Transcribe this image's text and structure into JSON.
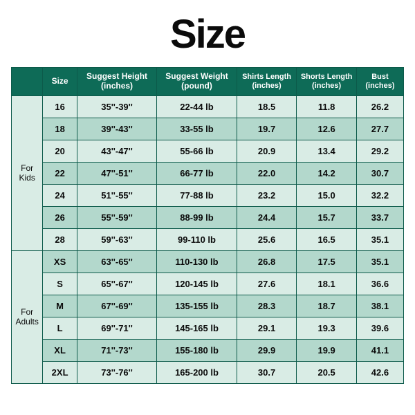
{
  "title": "Size",
  "title_fontsize": 58,
  "colors": {
    "page_bg": "#ffffff",
    "border": "#0c5a4a",
    "header_bg": "#0e6b57",
    "header_text": "#ffffff",
    "group_bg": "#d9ece5",
    "row_odd": "#d9ece5",
    "row_even": "#b3d8cc",
    "cell_text": "#0b0b0b"
  },
  "fontsize": {
    "header": 12,
    "header_small": 11,
    "cell": 13,
    "group": 12
  },
  "columns": [
    {
      "key": "size",
      "label": "Size",
      "unit": ""
    },
    {
      "key": "height",
      "label": "Suggest Height",
      "unit": "(inches)"
    },
    {
      "key": "weight",
      "label": "Suggest Weight",
      "unit": "(pound)"
    },
    {
      "key": "shirts",
      "label": "Shirts Length",
      "unit": "(inches)"
    },
    {
      "key": "shorts",
      "label": "Shorts Length",
      "unit": "(inches)"
    },
    {
      "key": "bust",
      "label": "Bust",
      "unit": "(inches)"
    }
  ],
  "groups": [
    {
      "label": "For\nKids",
      "rows": [
        {
          "size": "16",
          "height": "35''-39''",
          "weight": "22-44 lb",
          "shirts": "18.5",
          "shorts": "11.8",
          "bust": "26.2"
        },
        {
          "size": "18",
          "height": "39''-43''",
          "weight": "33-55 lb",
          "shirts": "19.7",
          "shorts": "12.6",
          "bust": "27.7"
        },
        {
          "size": "20",
          "height": "43''-47''",
          "weight": "55-66 lb",
          "shirts": "20.9",
          "shorts": "13.4",
          "bust": "29.2"
        },
        {
          "size": "22",
          "height": "47''-51''",
          "weight": "66-77 lb",
          "shirts": "22.0",
          "shorts": "14.2",
          "bust": "30.7"
        },
        {
          "size": "24",
          "height": "51''-55''",
          "weight": "77-88 lb",
          "shirts": "23.2",
          "shorts": "15.0",
          "bust": "32.2"
        },
        {
          "size": "26",
          "height": "55''-59''",
          "weight": "88-99 lb",
          "shirts": "24.4",
          "shorts": "15.7",
          "bust": "33.7"
        },
        {
          "size": "28",
          "height": "59''-63''",
          "weight": "99-110 lb",
          "shirts": "25.6",
          "shorts": "16.5",
          "bust": "35.1"
        }
      ]
    },
    {
      "label": "For\nAdults",
      "rows": [
        {
          "size": "XS",
          "height": "63''-65''",
          "weight": "110-130 lb",
          "shirts": "26.8",
          "shorts": "17.5",
          "bust": "35.1"
        },
        {
          "size": "S",
          "height": "65''-67''",
          "weight": "120-145 lb",
          "shirts": "27.6",
          "shorts": "18.1",
          "bust": "36.6"
        },
        {
          "size": "M",
          "height": "67''-69''",
          "weight": "135-155 lb",
          "shirts": "28.3",
          "shorts": "18.7",
          "bust": "38.1"
        },
        {
          "size": "L",
          "height": "69''-71''",
          "weight": "145-165 lb",
          "shirts": "29.1",
          "shorts": "19.3",
          "bust": "39.6"
        },
        {
          "size": "XL",
          "height": "71''-73''",
          "weight": "155-180 lb",
          "shirts": "29.9",
          "shorts": "19.9",
          "bust": "41.1"
        },
        {
          "size": "2XL",
          "height": "73''-76''",
          "weight": "165-200 lb",
          "shirts": "30.7",
          "shorts": "20.5",
          "bust": "42.6"
        }
      ]
    }
  ]
}
